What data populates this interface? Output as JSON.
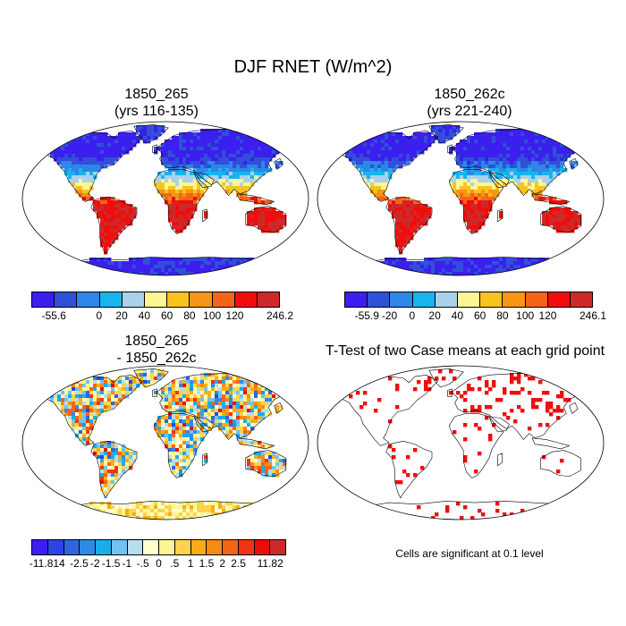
{
  "title": "DJF RNET (W/m^2)",
  "panels": [
    {
      "id": "p1",
      "title_line1": "1850_265",
      "title_line2": "(yrs 116-135)",
      "map_type": "mean",
      "colorbar": {
        "colors": [
          "#3b1fef",
          "#3050d8",
          "#2e86e8",
          "#18b4ee",
          "#a9d2ea",
          "#fdf596",
          "#f6c31f",
          "#f79516",
          "#f36519",
          "#f00d0d",
          "#cc2a2a"
        ],
        "labels": [
          "-55.6",
          "0",
          "20",
          "40",
          "60",
          "80",
          "100",
          "120",
          "246.2"
        ],
        "label_positions": [
          0,
          2,
          3,
          4,
          5,
          6,
          7,
          8,
          10
        ]
      }
    },
    {
      "id": "p2",
      "title_line1": "1850_262c",
      "title_line2": "(yrs 221-240)",
      "map_type": "mean",
      "colorbar": {
        "colors": [
          "#3b1fef",
          "#3050d8",
          "#2e86e8",
          "#18b4ee",
          "#a9d2ea",
          "#fdf596",
          "#f6c31f",
          "#f79516",
          "#f36519",
          "#f00d0d",
          "#cc2a2a"
        ],
        "labels": [
          "-55.9",
          "-20",
          "0",
          "20",
          "40",
          "60",
          "80",
          "100",
          "120",
          "246.1"
        ],
        "label_positions": [
          0,
          1,
          2,
          3,
          4,
          5,
          6,
          7,
          8,
          10
        ]
      }
    },
    {
      "id": "p3",
      "title_line1": "1850_265",
      "title_line2": "- 1850_262c",
      "map_type": "difference",
      "colorbar": {
        "colors": [
          "#3b1fef",
          "#2c44e6",
          "#3065dc",
          "#2f8ae6",
          "#17aeea",
          "#70c3ee",
          "#b8dcf0",
          "#ffffd0",
          "#fdf596",
          "#fcd44f",
          "#f7ad16",
          "#f58a17",
          "#f36519",
          "#f23416",
          "#e90d0d",
          "#cc2a2a"
        ],
        "labels": [
          "-11.814",
          "-2.5",
          "-2",
          "-1.5",
          "-1",
          "-.5",
          "0",
          ".5",
          "1",
          "1.5",
          "2",
          "2.5",
          "11.82"
        ],
        "label_positions": [
          0,
          2,
          3,
          4,
          5,
          6,
          7,
          8,
          9,
          10,
          11,
          12,
          14
        ]
      }
    },
    {
      "id": "p4",
      "title_line1": "T-Test of two Case means at each grid point",
      "title_line2": "",
      "map_type": "significance",
      "note": "Cells are significant at 0.1 level",
      "significance_color": "#f00d0d"
    }
  ]
}
